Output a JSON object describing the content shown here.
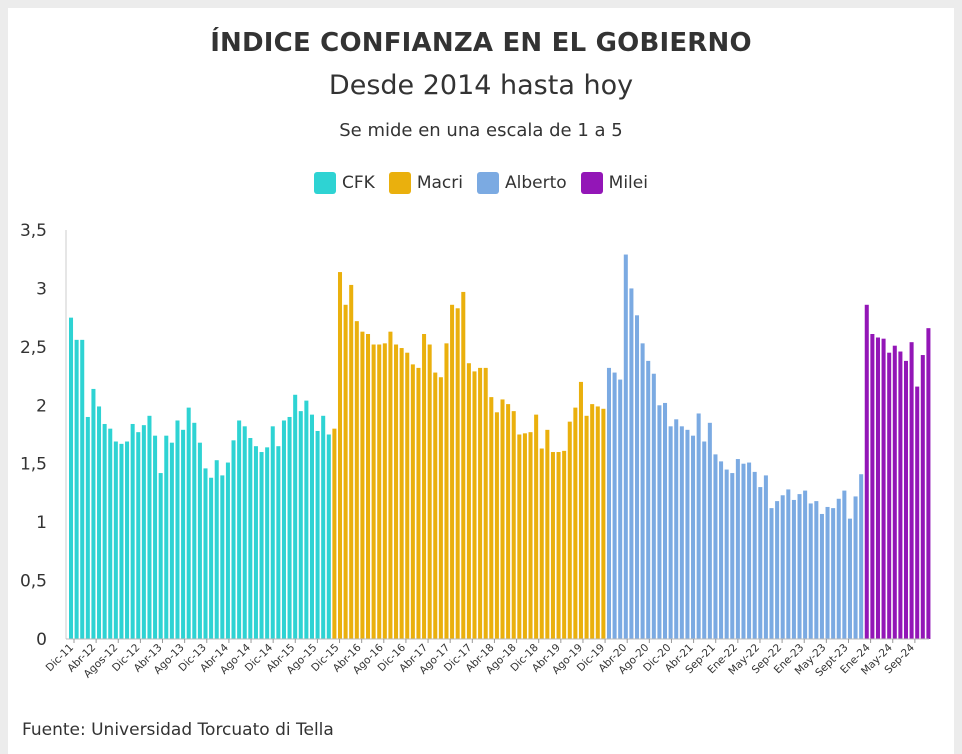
{
  "chart_data": {
    "type": "bar",
    "title": "ÍNDICE CONFIANZA EN EL GOBIERNO",
    "subtitle": "Desde 2014 hasta hoy",
    "note": "Se mide en una escala de 1 a 5",
    "source": "Fuente: Universidad Torcuato di Tella",
    "ylim": [
      0,
      3.5
    ],
    "y_ticks": [
      "0",
      "0,5",
      "1",
      "1,5",
      "2",
      "2,5",
      "3",
      "3,5"
    ],
    "legend_position": "top-center",
    "series": [
      {
        "name": "CFK",
        "color": "#2ed3d3",
        "values": [
          2.75,
          2.56,
          2.56,
          1.9,
          2.14,
          1.99,
          1.84,
          1.8,
          1.69,
          1.67,
          1.69,
          1.84,
          1.77,
          1.83,
          1.91,
          1.74,
          1.42,
          1.74,
          1.68,
          1.87,
          1.79,
          1.98,
          1.85,
          1.68,
          1.46,
          1.38,
          1.53,
          1.4,
          1.51,
          1.7,
          1.87,
          1.82,
          1.72,
          1.65,
          1.6,
          1.64,
          1.82,
          1.65,
          1.87,
          1.9,
          2.09,
          1.95,
          2.04,
          1.92,
          1.78,
          1.91,
          1.75
        ]
      },
      {
        "name": "Macri",
        "color": "#eab00d",
        "values": [
          1.8,
          3.14,
          2.86,
          3.03,
          2.72,
          2.63,
          2.61,
          2.52,
          2.52,
          2.53,
          2.63,
          2.52,
          2.49,
          2.45,
          2.35,
          2.32,
          2.61,
          2.52,
          2.28,
          2.24,
          2.53,
          2.86,
          2.83,
          2.97,
          2.36,
          2.29,
          2.32,
          2.32,
          2.07,
          1.94,
          2.05,
          2.01,
          1.95,
          1.75,
          1.76,
          1.77,
          1.92,
          1.63,
          1.79,
          1.6,
          1.6,
          1.61,
          1.86,
          1.98,
          2.2,
          1.91,
          2.01,
          1.99,
          1.97
        ]
      },
      {
        "name": "Alberto",
        "color": "#7baae2",
        "values": [
          2.32,
          2.28,
          2.22,
          3.29,
          3.0,
          2.77,
          2.53,
          2.38,
          2.27,
          2.0,
          2.02,
          1.82,
          1.88,
          1.82,
          1.79,
          1.74,
          1.93,
          1.69,
          1.85,
          1.58,
          1.52,
          1.45,
          1.42,
          1.54,
          1.5,
          1.51,
          1.43,
          1.3,
          1.4,
          1.12,
          1.18,
          1.23,
          1.28,
          1.19,
          1.24,
          1.27,
          1.16,
          1.18,
          1.07,
          1.13,
          1.12,
          1.2,
          1.27,
          1.03,
          1.22,
          1.41
        ]
      },
      {
        "name": "Milei",
        "color": "#9316b7",
        "values": [
          2.86,
          2.61,
          2.58,
          2.57,
          2.45,
          2.51,
          2.46,
          2.38,
          2.54,
          2.16,
          2.43,
          2.66
        ]
      }
    ],
    "x_tick_labels": [
      "Dic-11",
      "Abr-12",
      "Agos-12",
      "Dic-12",
      "Abr-13",
      "Ago-13",
      "Dic-13",
      "Abr-14",
      "Ago-14",
      "Dic-14",
      "Abr-15",
      "Ago-15",
      "Dic-15",
      "Abr-16",
      "Ago-16",
      "Dic-16",
      "Abr-17",
      "Ago-17",
      "Dic-17",
      "Abr-18",
      "Ago-18",
      "Dic-18",
      "Abr-19",
      "Ago-19",
      "Dic-19",
      "Abr-20",
      "Ago-20",
      "Dic-20",
      "Abr-21",
      "Sep-21",
      "Ene-22",
      "May-22",
      "Sep-22",
      "Ene-23",
      "May-23",
      "Sept-23",
      "Ene-24",
      "May-24",
      "Sep-24"
    ]
  }
}
